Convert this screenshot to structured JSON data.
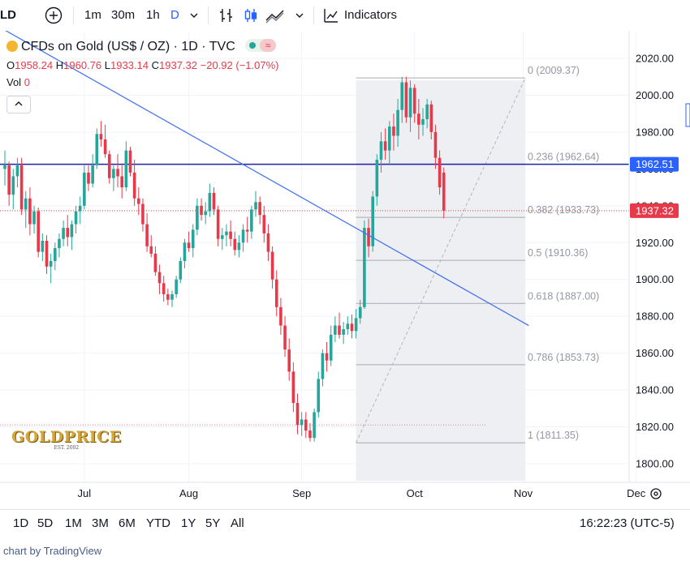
{
  "toolbar": {
    "symbol_fragment": "LD",
    "intervals": [
      "1m",
      "30m",
      "1h",
      "D"
    ],
    "active_interval": "D",
    "indicators_label": "Indicators"
  },
  "legend": {
    "title": "CFDs on Gold (US$ / OZ) · 1D · TVC",
    "ohlc": {
      "o_label": "O",
      "o": "1958.24",
      "h_label": "H",
      "h": "1960.76",
      "l_label": "L",
      "l": "1933.14",
      "c_label": "C",
      "c": "1937.32",
      "change": "−20.92 (−1.07%)"
    },
    "vol_label": "Vol",
    "vol": "0"
  },
  "bottom_bar": {
    "ranges": [
      "1D",
      "5D",
      "1M",
      "3M",
      "6M",
      "YTD",
      "1Y",
      "5Y",
      "All"
    ],
    "time": "16:22:23 (UTC-5)"
  },
  "footer": {
    "text": "chart by TradingView"
  },
  "watermark": {
    "brand": "GOLDPRICE",
    "est": "EST. 2002"
  },
  "colors": {
    "up": "#26a69a",
    "down": "#e8394a",
    "accent": "#2962ff",
    "trend": "#3d6ef0",
    "hline": "#1e22aa"
  },
  "chart_data": {
    "type": "candlestick",
    "x_labels": [
      "Jul",
      "Aug",
      "Sep",
      "Oct",
      "Nov",
      "Dec"
    ],
    "y_ticks": [
      "1800.00",
      "1820.00",
      "1840.00",
      "1860.00",
      "1880.00",
      "1900.00",
      "1920.00",
      "1940.00",
      "1960.00",
      "1980.00",
      "2000.00",
      "2020.00"
    ],
    "ylim": [
      1793,
      2024
    ],
    "horizontal_line": {
      "value": 1962.51,
      "label": "1962.51"
    },
    "last_price": {
      "value": 1937.32,
      "label": "1937.32"
    },
    "fibonacci": [
      {
        "label": "0 (2009.37)",
        "value": 2009.37
      },
      {
        "label": "0.236 (1962.64)",
        "value": 1962.64
      },
      {
        "label": "0.382 (1933.73)",
        "value": 1933.73
      },
      {
        "label": "0.5 (1910.36)",
        "value": 1910.36
      },
      {
        "label": "0.618 (1887.00)",
        "value": 1887.0
      },
      {
        "label": "0.786 (1853.73)",
        "value": 1853.73
      },
      {
        "label": "1 (1811.35)",
        "value": 1811.35
      }
    ],
    "trendline": [
      [
        -1.3,
        2037
      ],
      [
        125.3,
        1875
      ]
    ],
    "fib_start_day": 84,
    "fib_end_day": 124.5,
    "diag_from": [
      84,
      1811.35
    ],
    "diag_to": [
      124.5,
      2009.37
    ],
    "month_days": [
      19,
      44,
      71,
      98,
      124,
      151
    ],
    "ohlc": [
      [
        1960,
        1970,
        1951,
        1962
      ],
      [
        1962,
        1964,
        1940,
        1946
      ],
      [
        1946,
        1960,
        1938,
        1956
      ],
      [
        1956,
        1966,
        1950,
        1962
      ],
      [
        1962,
        1966,
        1935,
        1938
      ],
      [
        1938,
        1948,
        1928,
        1944
      ],
      [
        1944,
        1950,
        1924,
        1930
      ],
      [
        1930,
        1940,
        1925,
        1937
      ],
      [
        1937,
        1939,
        1912,
        1915
      ],
      [
        1915,
        1925,
        1910,
        1921
      ],
      [
        1921,
        1924,
        1903,
        1907
      ],
      [
        1907,
        1914,
        1898,
        1910
      ],
      [
        1910,
        1920,
        1905,
        1917
      ],
      [
        1917,
        1925,
        1912,
        1922
      ],
      [
        1922,
        1932,
        1918,
        1928
      ],
      [
        1928,
        1935,
        1918,
        1923
      ],
      [
        1923,
        1932,
        1916,
        1930
      ],
      [
        1930,
        1940,
        1925,
        1937
      ],
      [
        1937,
        1945,
        1930,
        1940
      ],
      [
        1940,
        1962,
        1938,
        1958
      ],
      [
        1958,
        1962,
        1948,
        1952
      ],
      [
        1952,
        1968,
        1950,
        1962
      ],
      [
        1962,
        1982,
        1960,
        1979
      ],
      [
        1979,
        1986,
        1972,
        1976
      ],
      [
        1976,
        1984,
        1966,
        1968
      ],
      [
        1968,
        1970,
        1952,
        1955
      ],
      [
        1955,
        1962,
        1948,
        1960
      ],
      [
        1960,
        1968,
        1950,
        1956
      ],
      [
        1956,
        1962,
        1944,
        1950
      ],
      [
        1950,
        1975,
        1948,
        1970
      ],
      [
        1970,
        1972,
        1956,
        1958
      ],
      [
        1958,
        1965,
        1940,
        1944
      ],
      [
        1944,
        1950,
        1935,
        1941
      ],
      [
        1941,
        1944,
        1926,
        1930
      ],
      [
        1930,
        1936,
        1915,
        1918
      ],
      [
        1918,
        1924,
        1912,
        1914
      ],
      [
        1914,
        1918,
        1902,
        1904
      ],
      [
        1904,
        1908,
        1892,
        1898
      ],
      [
        1898,
        1902,
        1888,
        1892
      ],
      [
        1892,
        1895,
        1886,
        1889
      ],
      [
        1889,
        1894,
        1885,
        1892
      ],
      [
        1892,
        1902,
        1890,
        1900
      ],
      [
        1900,
        1912,
        1898,
        1910
      ],
      [
        1910,
        1922,
        1906,
        1920
      ],
      [
        1920,
        1926,
        1915,
        1917
      ],
      [
        1917,
        1930,
        1912,
        1927
      ],
      [
        1927,
        1944,
        1924,
        1940
      ],
      [
        1940,
        1944,
        1932,
        1935
      ],
      [
        1935,
        1942,
        1930,
        1937
      ],
      [
        1937,
        1952,
        1934,
        1947
      ],
      [
        1947,
        1950,
        1935,
        1938
      ],
      [
        1938,
        1940,
        1918,
        1922
      ],
      [
        1922,
        1928,
        1916,
        1924
      ],
      [
        1924,
        1930,
        1918,
        1926
      ],
      [
        1926,
        1932,
        1918,
        1922
      ],
      [
        1922,
        1926,
        1913,
        1916
      ],
      [
        1916,
        1924,
        1912,
        1920
      ],
      [
        1920,
        1930,
        1915,
        1927
      ],
      [
        1927,
        1934,
        1920,
        1926
      ],
      [
        1926,
        1940,
        1922,
        1938
      ],
      [
        1938,
        1948,
        1934,
        1942
      ],
      [
        1942,
        1945,
        1930,
        1935
      ],
      [
        1935,
        1940,
        1920,
        1925
      ],
      [
        1925,
        1930,
        1910,
        1915
      ],
      [
        1915,
        1918,
        1895,
        1900
      ],
      [
        1900,
        1905,
        1880,
        1885
      ],
      [
        1885,
        1890,
        1870,
        1875
      ],
      [
        1875,
        1880,
        1858,
        1862
      ],
      [
        1862,
        1868,
        1845,
        1850
      ],
      [
        1850,
        1855,
        1828,
        1833
      ],
      [
        1833,
        1838,
        1816,
        1821
      ],
      [
        1821,
        1828,
        1815,
        1824
      ],
      [
        1824,
        1828,
        1814,
        1818
      ],
      [
        1818,
        1822,
        1812,
        1814
      ],
      [
        1814,
        1830,
        1812,
        1828
      ],
      [
        1828,
        1850,
        1825,
        1846
      ],
      [
        1846,
        1862,
        1842,
        1860
      ],
      [
        1860,
        1866,
        1850,
        1856
      ],
      [
        1856,
        1875,
        1853,
        1870
      ],
      [
        1870,
        1880,
        1866,
        1875
      ],
      [
        1875,
        1882,
        1868,
        1870
      ],
      [
        1870,
        1877,
        1865,
        1873
      ],
      [
        1873,
        1880,
        1870,
        1876
      ],
      [
        1876,
        1881,
        1868,
        1872
      ],
      [
        1872,
        1884,
        1868,
        1879
      ],
      [
        1879,
        1889,
        1876,
        1885
      ],
      [
        1885,
        1932,
        1884,
        1928
      ],
      [
        1928,
        1933,
        1912,
        1918
      ],
      [
        1918,
        1948,
        1915,
        1945
      ],
      [
        1945,
        1968,
        1940,
        1965
      ],
      [
        1965,
        1980,
        1958,
        1975
      ],
      [
        1975,
        1982,
        1965,
        1970
      ],
      [
        1970,
        1986,
        1962,
        1983
      ],
      [
        1983,
        1990,
        1970,
        1978
      ],
      [
        1978,
        1998,
        1972,
        1992
      ],
      [
        1992,
        2010,
        1985,
        2007
      ],
      [
        2007,
        2010,
        1985,
        1988
      ],
      [
        1988,
        2008,
        1980,
        2004
      ],
      [
        2004,
        2006,
        1985,
        1990
      ],
      [
        1990,
        1998,
        1976,
        1984
      ],
      [
        1984,
        1993,
        1978,
        1987
      ],
      [
        1987,
        1998,
        1982,
        1995
      ],
      [
        1995,
        1997,
        1976,
        1980
      ],
      [
        1980,
        1984,
        1960,
        1966
      ],
      [
        1966,
        1970,
        1946,
        1950
      ],
      [
        1958,
        1960.76,
        1933.14,
        1937.32
      ]
    ],
    "ohlc_day_offset": 0
  }
}
